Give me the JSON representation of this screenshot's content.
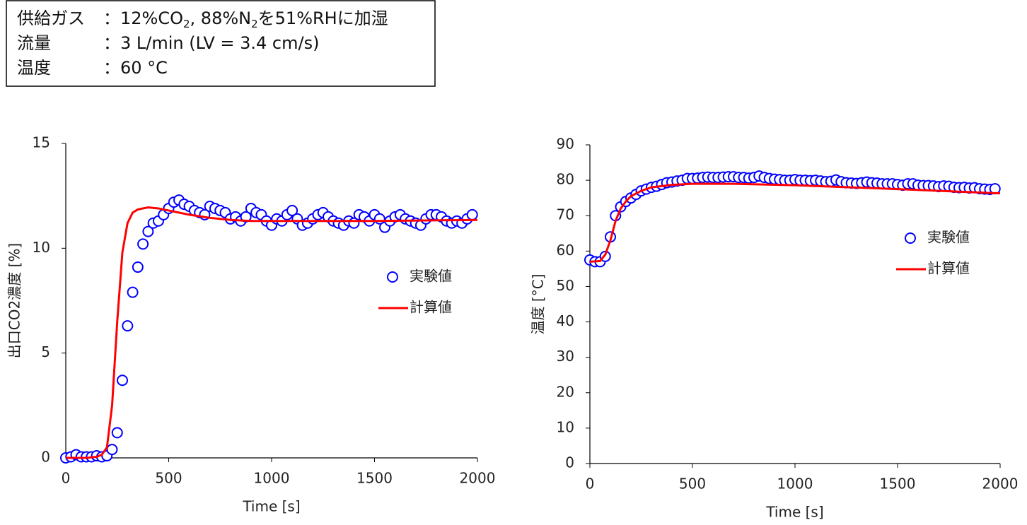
{
  "info_box": {
    "rows": [
      {
        "label": "供給ガス",
        "runs": [
          {
            "text": "：12%CO"
          },
          {
            "text": "2",
            "sub": true
          },
          {
            "text": ", 88%N"
          },
          {
            "text": "2",
            "sub": true
          },
          {
            "text": "を51%RHに加湿"
          }
        ]
      },
      {
        "label": "流量",
        "runs": [
          {
            "text": "：3 L/min (LV = 3.4 cm/s)"
          }
        ]
      },
      {
        "label": "温度",
        "runs": [
          {
            "text": "：60 °C"
          }
        ]
      }
    ]
  },
  "chart_data": [
    {
      "type": "scatter",
      "xlabel": "Time [s]",
      "ylabel": "出口CO2濃度 [%]",
      "xlim": [
        0,
        2000
      ],
      "xticks": [
        0,
        500,
        1000,
        1500,
        2000
      ],
      "ylim": [
        0,
        15
      ],
      "yticks": [
        0,
        5,
        10,
        15
      ],
      "grid": false,
      "legend": "right",
      "series": [
        {
          "name": "実験値",
          "color": "#0000ff",
          "marker": "circle",
          "x": [
            0,
            25,
            50,
            75,
            100,
            125,
            150,
            175,
            200,
            225,
            250,
            275,
            300,
            325,
            350,
            375,
            400,
            425,
            450,
            475,
            500,
            525,
            550,
            575,
            600,
            625,
            650,
            675,
            700,
            725,
            750,
            775,
            800,
            825,
            850,
            875,
            900,
            925,
            950,
            975,
            1000,
            1025,
            1050,
            1075,
            1100,
            1125,
            1150,
            1175,
            1200,
            1225,
            1250,
            1275,
            1300,
            1325,
            1350,
            1375,
            1400,
            1425,
            1450,
            1475,
            1500,
            1525,
            1550,
            1575,
            1600,
            1625,
            1650,
            1675,
            1700,
            1725,
            1750,
            1775,
            1800,
            1825,
            1850,
            1875,
            1900,
            1925,
            1950,
            1975
          ],
          "values": [
            0,
            0.05,
            0.15,
            0.05,
            0.05,
            0.05,
            0.1,
            0.05,
            0.1,
            0.4,
            1.2,
            3.7,
            6.3,
            7.9,
            9.1,
            10.2,
            10.8,
            11.2,
            11.3,
            11.6,
            11.9,
            12.2,
            12.3,
            12.1,
            12.0,
            11.8,
            11.7,
            11.6,
            12.0,
            11.9,
            11.8,
            11.7,
            11.4,
            11.5,
            11.3,
            11.5,
            11.9,
            11.7,
            11.6,
            11.3,
            11.1,
            11.4,
            11.3,
            11.6,
            11.8,
            11.4,
            11.1,
            11.2,
            11.4,
            11.6,
            11.7,
            11.5,
            11.3,
            11.2,
            11.1,
            11.3,
            11.2,
            11.6,
            11.5,
            11.3,
            11.6,
            11.4,
            11.0,
            11.3,
            11.5,
            11.6,
            11.4,
            11.3,
            11.2,
            11.1,
            11.4,
            11.6,
            11.6,
            11.5,
            11.3,
            11.2,
            11.3,
            11.2,
            11.4,
            11.6
          ]
        },
        {
          "name": "計算値",
          "color": "#ff0000",
          "marker": "line",
          "x": [
            0,
            100,
            150,
            175,
            200,
            225,
            250,
            275,
            300,
            325,
            350,
            400,
            450,
            500,
            550,
            600,
            700,
            800,
            900,
            1000,
            1200,
            1500,
            2000
          ],
          "values": [
            0,
            0,
            0.05,
            0.15,
            0.5,
            2.5,
            6.5,
            9.8,
            11.2,
            11.7,
            11.85,
            11.95,
            11.9,
            11.8,
            11.7,
            11.6,
            11.45,
            11.35,
            11.3,
            11.3,
            11.3,
            11.3,
            11.35
          ]
        }
      ]
    },
    {
      "type": "scatter",
      "xlabel": "Time [s]",
      "ylabel": "温度 [°C]",
      "xlim": [
        0,
        2000
      ],
      "xticks": [
        0,
        500,
        1000,
        1500,
        2000
      ],
      "ylim": [
        0,
        90
      ],
      "yticks": [
        0,
        10,
        20,
        30,
        40,
        50,
        60,
        70,
        80,
        90
      ],
      "grid": false,
      "legend": "right",
      "series": [
        {
          "name": "実験値",
          "color": "#0000ff",
          "marker": "circle",
          "x": [
            0,
            25,
            50,
            75,
            100,
            125,
            150,
            175,
            200,
            225,
            250,
            275,
            300,
            325,
            350,
            375,
            400,
            425,
            450,
            475,
            500,
            525,
            550,
            575,
            600,
            625,
            650,
            675,
            700,
            725,
            750,
            775,
            800,
            825,
            850,
            875,
            900,
            925,
            950,
            975,
            1000,
            1025,
            1050,
            1075,
            1100,
            1125,
            1150,
            1175,
            1200,
            1225,
            1250,
            1275,
            1300,
            1325,
            1350,
            1375,
            1400,
            1425,
            1450,
            1475,
            1500,
            1525,
            1550,
            1575,
            1600,
            1625,
            1650,
            1675,
            1700,
            1725,
            1750,
            1775,
            1800,
            1825,
            1850,
            1875,
            1900,
            1925,
            1950,
            1975
          ],
          "values": [
            57.5,
            57,
            57,
            58.5,
            64,
            70,
            72.5,
            74,
            75,
            76,
            77,
            77.5,
            78,
            78.3,
            78.8,
            79.3,
            79.5,
            79.8,
            80,
            80.5,
            80.5,
            80.6,
            80.8,
            80.9,
            80.8,
            80.8,
            80.9,
            81,
            81,
            80.8,
            80.8,
            80.6,
            80.8,
            81.2,
            80.8,
            80.5,
            80.3,
            80.2,
            80.0,
            80.0,
            80.2,
            80.0,
            80.0,
            79.9,
            80.0,
            79.8,
            79.6,
            79.7,
            80.1,
            79.6,
            79.3,
            79.2,
            79.1,
            79.3,
            79.5,
            79.3,
            79.2,
            79.0,
            79.0,
            79.0,
            78.8,
            78.6,
            79.0,
            79.0,
            78.6,
            78.5,
            78.5,
            78.4,
            78.2,
            78.4,
            78.3,
            78.0,
            77.9,
            78.0,
            77.8,
            77.9,
            77.6,
            77.5,
            77.4,
            77.6
          ]
        },
        {
          "name": "計算値",
          "color": "#ff0000",
          "marker": "line",
          "x": [
            0,
            50,
            75,
            100,
            125,
            150,
            175,
            200,
            250,
            300,
            400,
            500,
            700,
            1000,
            1500,
            2000
          ],
          "values": [
            57,
            57.2,
            59,
            63,
            68.5,
            72,
            74,
            75.5,
            77,
            78,
            78.7,
            79,
            79,
            78.6,
            77.5,
            76.3
          ]
        }
      ]
    }
  ]
}
